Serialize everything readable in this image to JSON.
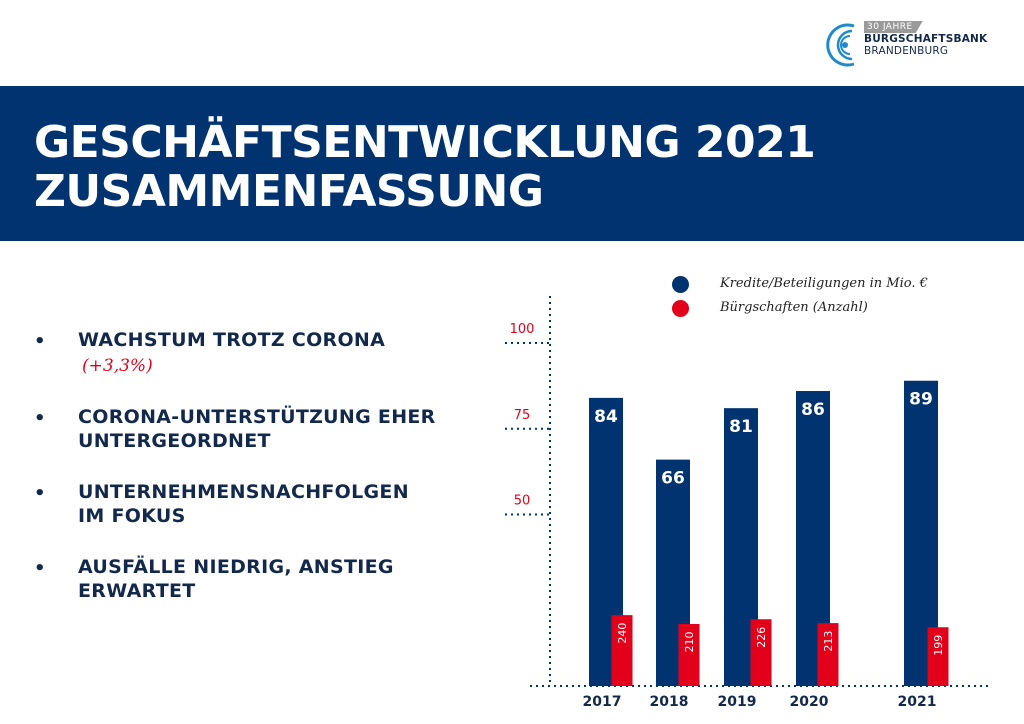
{
  "logo": {
    "badge": "30 JAHRE",
    "line1": "BÜRGSCHAFTSBANK",
    "line2": "BRANDENBURG",
    "colors": {
      "navy": "#13294b",
      "badge": "#9a9a9a",
      "accent": "#1f8ac9"
    }
  },
  "title": {
    "line1": "GESCHÄFTSENTWICKLUNG 2021",
    "line2": "ZUSAMMENFASSUNG"
  },
  "bullets": [
    {
      "lines": [
        "WACHSTUM TROTZ CORONA"
      ],
      "note": "(+3,3%)"
    },
    {
      "lines": [
        "CORONA-UNTERSTÜTZUNG EHER",
        "UNTERGEORDNET"
      ],
      "note": ""
    },
    {
      "lines": [
        "UNTERNEHMENSNACHFOLGEN",
        "IM FOKUS"
      ],
      "note": ""
    },
    {
      "lines": [
        "AUSFÄLLE NIEDRIG, ANSTIEG",
        "ERWARTET"
      ],
      "note": ""
    }
  ],
  "colors": {
    "navy": "#003370",
    "red": "#e2001a",
    "text": "#13294b"
  },
  "chart_data": {
    "type": "bar",
    "categories": [
      "2017",
      "2018",
      "2019",
      "2020",
      "2021"
    ],
    "series": [
      {
        "name": "Kredite/Beteiligungen in Mio. €",
        "values": [
          84,
          66,
          81,
          86,
          89
        ],
        "color": "#003370",
        "axis": "left"
      },
      {
        "name": "Bürgschaften (Anzahl)",
        "values": [
          240,
          210,
          226,
          213,
          199
        ],
        "color": "#e2001a",
        "axis": "secondary"
      }
    ],
    "y_ticks": [
      50,
      75,
      100
    ],
    "ylim": [
      0,
      107
    ],
    "secondary_ylim": [
      0,
      700
    ],
    "grid": false,
    "legend_position": "top-right",
    "title": "",
    "xlabel": "",
    "ylabel": ""
  }
}
